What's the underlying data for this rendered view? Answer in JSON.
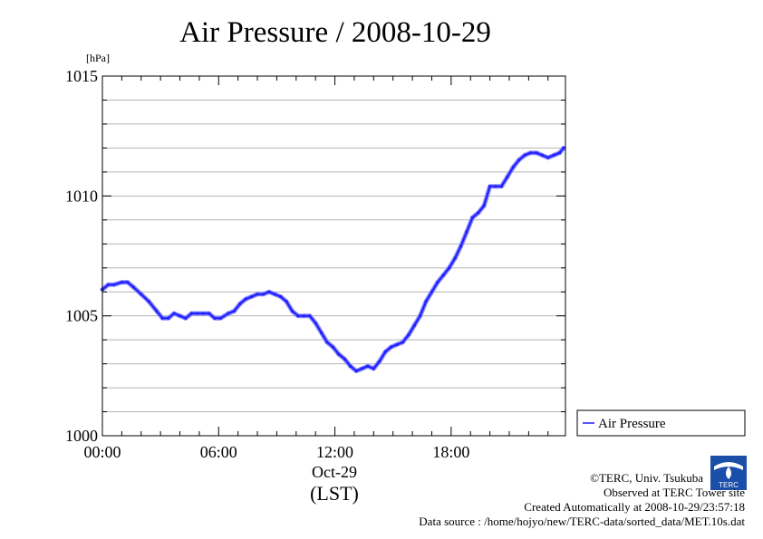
{
  "chart_data": {
    "type": "line",
    "title": "Air Pressure / 2008-10-29",
    "ylabel": "[hPa]",
    "xlabel_date": "Oct-29",
    "xlabel_tz": "(LST)",
    "ylim": [
      1000,
      1015
    ],
    "xlim": [
      0,
      23.9
    ],
    "x_unit": "hours (LST)",
    "y_ticks": [
      "1000",
      "1005",
      "1010",
      "1015"
    ],
    "x_ticks": [
      {
        "x": 0,
        "label": "00:00"
      },
      {
        "x": 6,
        "label": "06:00"
      },
      {
        "x": 12,
        "label": "12:00"
      },
      {
        "x": 18,
        "label": "18:00"
      }
    ],
    "grid": true,
    "legend_position": "right",
    "series": [
      {
        "name": "Air Pressure",
        "color": "#2020ff",
        "x": [
          0.0,
          0.3,
          0.6,
          1.0,
          1.3,
          1.6,
          2.0,
          2.4,
          2.8,
          3.1,
          3.4,
          3.7,
          4.0,
          4.3,
          4.6,
          4.9,
          5.2,
          5.5,
          5.8,
          6.1,
          6.5,
          6.8,
          7.1,
          7.4,
          7.7,
          8.0,
          8.3,
          8.6,
          8.9,
          9.2,
          9.5,
          9.8,
          10.1,
          10.4,
          10.7,
          11.0,
          11.3,
          11.6,
          11.9,
          12.2,
          12.5,
          12.8,
          13.1,
          13.4,
          13.7,
          14.0,
          14.3,
          14.6,
          14.9,
          15.2,
          15.5,
          15.8,
          16.1,
          16.4,
          16.7,
          17.0,
          17.3,
          17.6,
          17.9,
          18.2,
          18.5,
          18.8,
          19.1,
          19.4,
          19.7,
          20.0,
          20.3,
          20.6,
          20.9,
          21.2,
          21.5,
          21.8,
          22.1,
          22.4,
          22.7,
          23.0,
          23.3,
          23.6,
          23.8
        ],
        "values": [
          1006.1,
          1006.3,
          1006.3,
          1006.4,
          1006.4,
          1006.2,
          1005.9,
          1005.6,
          1005.2,
          1004.9,
          1004.9,
          1005.1,
          1005.0,
          1004.9,
          1005.1,
          1005.1,
          1005.1,
          1005.1,
          1004.9,
          1004.9,
          1005.1,
          1005.2,
          1005.5,
          1005.7,
          1005.8,
          1005.9,
          1005.9,
          1006.0,
          1005.9,
          1005.8,
          1005.6,
          1005.2,
          1005.0,
          1005.0,
          1005.0,
          1004.7,
          1004.3,
          1003.9,
          1003.7,
          1003.4,
          1003.2,
          1002.9,
          1002.7,
          1002.8,
          1002.9,
          1002.8,
          1003.1,
          1003.5,
          1003.7,
          1003.8,
          1003.9,
          1004.2,
          1004.6,
          1005.0,
          1005.6,
          1006.0,
          1006.4,
          1006.7,
          1007.0,
          1007.4,
          1007.9,
          1008.5,
          1009.1,
          1009.3,
          1009.6,
          1010.4,
          1010.4,
          1010.4,
          1010.8,
          1011.2,
          1011.5,
          1011.7,
          1011.8,
          1011.8,
          1011.7,
          1011.6,
          1011.7,
          1011.8,
          1012.0
        ]
      }
    ]
  },
  "footer": {
    "copyright": "©TERC, Univ. Tsukuba",
    "observed": "Observed at TERC Tower site",
    "created": "Created Automatically at 2008-10-29/23:57:18",
    "source": "Data source : /home/hojyo/new/TERC-data/sorted_data/MET.10s.dat",
    "logo_text": "TERC"
  }
}
